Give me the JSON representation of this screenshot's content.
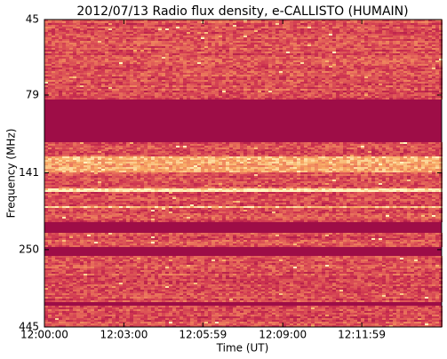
{
  "chart_data": {
    "type": "spectrogram",
    "title": "2012/07/13  Radio flux density, e-CALLISTO (HUMAIN)",
    "x_label": "Time (UT)",
    "y_label": "Frequency (MHz)",
    "xlim": [
      43200,
      44100
    ],
    "xticks": [
      {
        "value": 43200,
        "label": "12:00:00"
      },
      {
        "value": 43380,
        "label": "12:03:00"
      },
      {
        "value": 43559,
        "label": "12:05:59"
      },
      {
        "value": 43740,
        "label": "12:09:00"
      },
      {
        "value": 43919,
        "label": "12:11:59"
      }
    ],
    "ylim": [
      45,
      445
    ],
    "yticks": [
      45,
      79,
      141,
      250,
      445
    ],
    "ylog": true,
    "yinverted": true
  }
}
